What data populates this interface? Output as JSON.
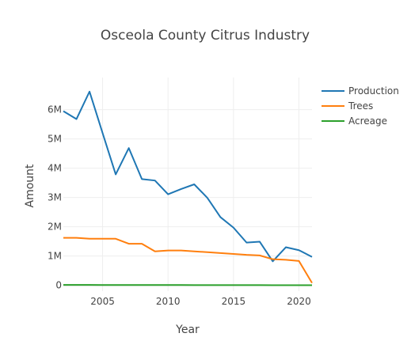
{
  "chart_data": {
    "type": "line",
    "title": "Osceola County Citrus Industry",
    "xlabel": "Year",
    "ylabel": "Amount",
    "xlim": [
      2002,
      2021
    ],
    "ylim": [
      -200000,
      7100000
    ],
    "x_ticks": [
      2005,
      2010,
      2015,
      2020
    ],
    "x_tick_labels": [
      "2005",
      "2010",
      "2015",
      "2020"
    ],
    "y_ticks": [
      0,
      1000000,
      2000000,
      3000000,
      4000000,
      5000000,
      6000000
    ],
    "y_tick_labels": [
      "0",
      "1M",
      "2M",
      "3M",
      "4M",
      "5M",
      "6M"
    ],
    "grid": true,
    "legend_position": "top-right",
    "x": [
      2002,
      2003,
      2004,
      2005,
      2006,
      2007,
      2008,
      2009,
      2010,
      2011,
      2012,
      2013,
      2014,
      2015,
      2016,
      2017,
      2018,
      2019,
      2020,
      2021
    ],
    "series": [
      {
        "name": "Production",
        "color": "#1f77b4",
        "values": [
          5950000,
          5680000,
          6620000,
          5200000,
          3790000,
          4690000,
          3630000,
          3580000,
          3110000,
          3290000,
          3450000,
          2990000,
          2330000,
          1970000,
          1460000,
          1490000,
          820000,
          1300000,
          1200000,
          970000
        ]
      },
      {
        "name": "Trees",
        "color": "#ff7f0e",
        "values": [
          1620000,
          1620000,
          1590000,
          1590000,
          1590000,
          1420000,
          1420000,
          1160000,
          1190000,
          1190000,
          1160000,
          1130000,
          1100000,
          1070000,
          1040000,
          1020000,
          890000,
          870000,
          830000,
          80000
        ]
      },
      {
        "name": "Acreage",
        "color": "#2ca02c",
        "values": [
          12000,
          12000,
          11500,
          11000,
          10500,
          10000,
          9500,
          9000,
          8500,
          8000,
          7500,
          7000,
          6500,
          6000,
          5500,
          5000,
          4500,
          4000,
          3500,
          3000
        ]
      }
    ]
  }
}
